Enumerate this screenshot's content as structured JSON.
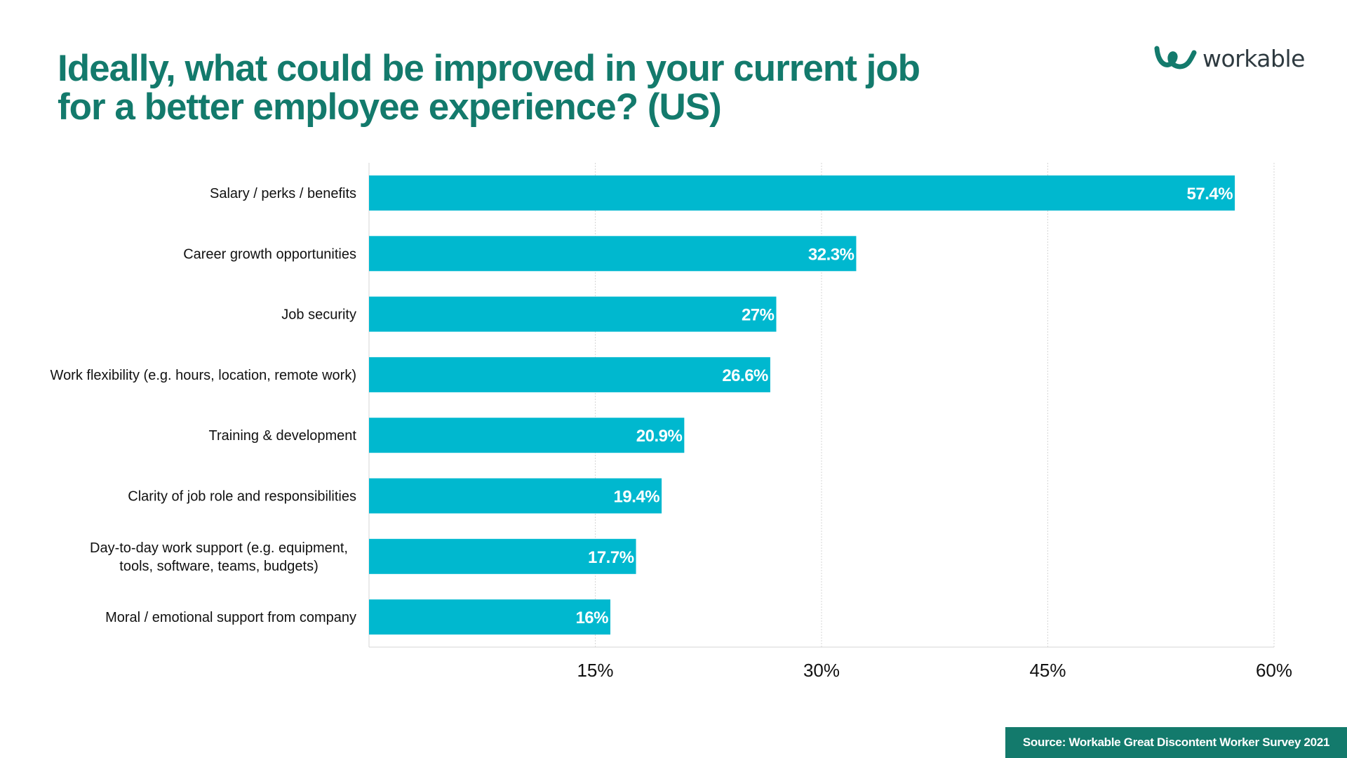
{
  "title": {
    "line1": "Ideally, what could be improved in your current job",
    "line2": "for a better employee experience? (US)"
  },
  "logo": {
    "text": "workable",
    "icon": "workable-logo-icon",
    "color": "#137a6c"
  },
  "source": "Source: Workable Great Discontent Worker Survey 2021",
  "colors": {
    "bar": "#00b8cf",
    "title": "#137a6c",
    "grid": "#d6d6d6",
    "text": "#111111"
  },
  "chart_data": {
    "type": "bar",
    "orientation": "horizontal",
    "categories": [
      [
        "Salary / perks / benefits"
      ],
      [
        "Career growth opportunities"
      ],
      [
        "Job security"
      ],
      [
        "Work flexibility (e.g. hours, location, remote work)"
      ],
      [
        "Training & development"
      ],
      [
        "Clarity of job role and responsibilities"
      ],
      [
        "Day-to-day work support (e.g. equipment,",
        "tools, software, teams, budgets)"
      ],
      [
        "Moral / emotional support from company"
      ]
    ],
    "values": [
      57.4,
      32.3,
      27,
      26.6,
      20.9,
      19.4,
      17.7,
      16
    ],
    "value_labels": [
      "57.4%",
      "32.3%",
      "27%",
      "26.6%",
      "20.9%",
      "19.4%",
      "17.7%",
      "16%"
    ],
    "xticks": [
      15,
      30,
      45,
      60
    ],
    "xtick_labels": [
      "15%",
      "30%",
      "45%",
      "60%"
    ],
    "xlim": [
      0,
      60
    ],
    "grid": true,
    "title": "Ideally, what could be improved in your current job for a better employee experience? (US)",
    "xlabel": "",
    "ylabel": ""
  }
}
